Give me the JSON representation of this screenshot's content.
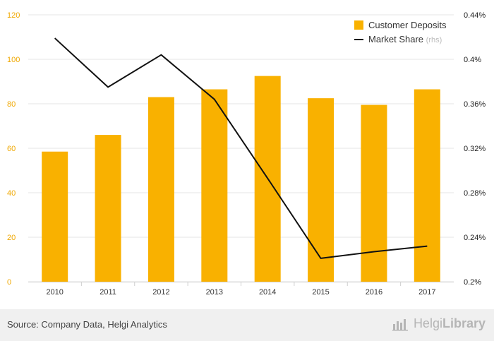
{
  "chart_data": {
    "type": "bar",
    "categories": [
      "2010",
      "2011",
      "2012",
      "2013",
      "2014",
      "2015",
      "2016",
      "2017"
    ],
    "series": [
      {
        "name": "Customer Deposits",
        "type": "bar",
        "axis": "left",
        "values": [
          58.5,
          66,
          83,
          86.5,
          92.5,
          82.5,
          79.5,
          86.5
        ]
      },
      {
        "name": "Market Share",
        "type": "line",
        "axis": "right",
        "values": [
          0.419,
          0.375,
          0.404,
          0.364,
          0.293,
          0.221,
          0.227,
          0.232
        ]
      }
    ],
    "rhs_suffix": "(rhs)",
    "left_axis": {
      "min": 0,
      "max": 120,
      "ticks": [
        "0",
        "20",
        "40",
        "60",
        "80",
        "100",
        "120"
      ]
    },
    "right_axis": {
      "min": 0.2,
      "max": 0.44,
      "ticks": [
        "0.2%",
        "0.24%",
        "0.28%",
        "0.32%",
        "0.36%",
        "0.4%",
        "0.44%"
      ]
    },
    "grid": true,
    "legend_position": "top-right",
    "colors": {
      "bar": "#f9b100",
      "line": "#111111",
      "grid": "#e6e6e6"
    }
  },
  "footer": {
    "source": "Source: Company Data, Helgi Analytics",
    "brand_light": "Helgi",
    "brand_bold": "Library",
    "brand_icon": "bar-chart-icon"
  }
}
